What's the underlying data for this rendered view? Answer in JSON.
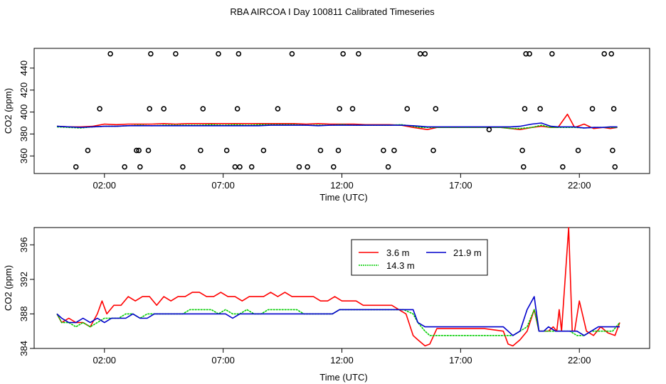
{
  "title": "RBA AIRCOA I  Day 100811  Calibrated Timeseries",
  "chart_data": [
    {
      "type": "scatter+line",
      "name": "full-range",
      "xlabel": "Time (UTC)",
      "ylabel": "CO2 (ppm)",
      "xlim": [
        0,
        24
      ],
      "ylim": [
        344,
        458
      ],
      "x_ticks": [
        2,
        7,
        12,
        17,
        22
      ],
      "x_tick_labels": [
        "02:00",
        "07:00",
        "12:00",
        "17:00",
        "22:00"
      ],
      "y_ticks": [
        360,
        380,
        400,
        420,
        440
      ],
      "y_tick_labels": [
        "360",
        "380",
        "400",
        "420",
        "440"
      ],
      "series": [
        {
          "name": "3.6 m",
          "color": "#ff0000",
          "x": [
            0,
            0.5,
            1,
            1.5,
            2,
            2.5,
            3,
            3.5,
            4,
            4.5,
            5,
            5.5,
            6,
            6.5,
            7,
            7.5,
            8,
            8.5,
            9,
            9.5,
            10,
            10.5,
            11,
            11.5,
            12,
            12.5,
            13,
            13.5,
            14,
            14.5,
            15,
            15.3,
            15.6,
            16,
            17,
            18,
            18.7,
            19.1,
            19.5,
            20,
            20.4,
            20.8,
            21.1,
            21.3,
            21.5,
            21.8,
            22.2,
            22.6,
            23,
            23.3,
            23.6
          ],
          "y": [
            387,
            386.5,
            386.5,
            387,
            389,
            388.5,
            389,
            389,
            389,
            389.5,
            389,
            389.5,
            389.5,
            389.5,
            389.5,
            389.5,
            389.5,
            389.5,
            389.5,
            389.5,
            389.5,
            389,
            389.5,
            389,
            389,
            389,
            388.5,
            388.5,
            388.5,
            388,
            386,
            385,
            384,
            386,
            386,
            386,
            386,
            385,
            384,
            386,
            387,
            386,
            386,
            392,
            398,
            386,
            389,
            385,
            386,
            385,
            386
          ]
        },
        {
          "name": "14.3 m",
          "color": "#00cc00",
          "x": [
            0,
            0.5,
            1,
            1.5,
            2,
            2.5,
            3,
            3.5,
            4,
            4.5,
            5,
            5.5,
            6,
            6.5,
            7,
            7.5,
            8,
            8.5,
            9,
            9.5,
            10,
            10.5,
            11,
            11.5,
            12,
            12.5,
            13,
            13.5,
            14,
            14.5,
            15,
            15.3,
            15.6,
            16,
            17,
            18,
            18.7,
            19.1,
            19.5,
            20,
            20.4,
            20.8,
            21.1,
            21.3,
            21.5,
            21.8,
            22.2,
            22.6,
            23,
            23.3,
            23.6
          ],
          "y": [
            386.5,
            386,
            385.5,
            386.5,
            387,
            387,
            387.5,
            388,
            387.5,
            388,
            388,
            388,
            388,
            388.5,
            388,
            388.5,
            388,
            388.5,
            388.5,
            388.5,
            388.5,
            388,
            388,
            388,
            388.5,
            388,
            388,
            388,
            388,
            388.5,
            387,
            386,
            386,
            386,
            386,
            386,
            386,
            385,
            385,
            386,
            388,
            386,
            386,
            386,
            386,
            386,
            385.5,
            386,
            386,
            386,
            386
          ]
        },
        {
          "name": "21.9 m",
          "color": "#0000cc",
          "x": [
            0,
            0.5,
            1,
            1.5,
            2,
            2.5,
            3,
            3.5,
            4,
            4.5,
            5,
            5.5,
            6,
            6.5,
            7,
            7.5,
            8,
            8.5,
            9,
            9.5,
            10,
            10.5,
            11,
            11.5,
            12,
            12.5,
            13,
            13.5,
            14,
            14.5,
            15,
            15.3,
            15.6,
            16,
            17,
            18,
            18.7,
            19.1,
            19.5,
            20,
            20.4,
            20.8,
            21.1,
            21.3,
            21.5,
            21.8,
            22.2,
            22.6,
            23,
            23.3,
            23.6
          ],
          "y": [
            387,
            386.5,
            386,
            386.5,
            387,
            387,
            387.5,
            387.5,
            387.5,
            387.5,
            387.5,
            387.5,
            387.5,
            387.5,
            387.5,
            387.5,
            387.5,
            387.5,
            388,
            388,
            388,
            388,
            387.5,
            388,
            388,
            388,
            388,
            388,
            388,
            388,
            387.5,
            387,
            386.5,
            386.5,
            386.5,
            386.5,
            386.5,
            386.5,
            387,
            389,
            390,
            387,
            386.5,
            386.5,
            386.5,
            386.5,
            385.5,
            386,
            386,
            386.5,
            386.5
          ]
        },
        {
          "name": "points",
          "kind": "markers",
          "x": [
            0.8,
            1.3,
            1.8,
            2.25,
            2.85,
            3.35,
            3.45,
            3.5,
            3.85,
            3.9,
            3.95,
            4.5,
            5.0,
            5.3,
            6.05,
            6.15,
            6.8,
            7.15,
            7.5,
            7.6,
            7.65,
            7.7,
            8.2,
            8.7,
            9.3,
            9.9,
            10.2,
            10.55,
            11.1,
            11.65,
            11.85,
            11.9,
            12.05,
            12.45,
            12.7,
            13.75,
            13.95,
            14.2,
            14.75,
            15.3,
            15.5,
            15.85,
            15.95,
            18.2,
            19.6,
            19.65,
            19.7,
            19.75,
            19.9,
            20.35,
            20.85,
            21.3,
            21.95,
            22.55,
            23.05,
            23.35,
            23.4,
            23.45,
            23.5
          ],
          "y": [
            350,
            365,
            403,
            453,
            350,
            365,
            365,
            350,
            365,
            403,
            453,
            403,
            453,
            350,
            365,
            403,
            453,
            365,
            350,
            403,
            453,
            350,
            350,
            365,
            403,
            453,
            350,
            350,
            365,
            350,
            365,
            403,
            453,
            403,
            453,
            365,
            350,
            365,
            403,
            453,
            453,
            365,
            403,
            384,
            365,
            350,
            403,
            453,
            453,
            403,
            453,
            350,
            365,
            403,
            453,
            453,
            365,
            403,
            350
          ]
        }
      ]
    },
    {
      "type": "line",
      "name": "zoomed",
      "xlabel": "Time (UTC)",
      "ylabel": "CO2 (ppm)",
      "xlim": [
        0,
        24
      ],
      "ylim": [
        384,
        398
      ],
      "x_ticks": [
        2,
        7,
        12,
        17,
        22
      ],
      "x_tick_labels": [
        "02:00",
        "07:00",
        "12:00",
        "17:00",
        "22:00"
      ],
      "y_ticks": [
        384,
        388,
        392,
        396
      ],
      "y_tick_labels": [
        "384",
        "388",
        "392",
        "396"
      ],
      "legend": {
        "position": "top-center",
        "entries": [
          "3.6 m",
          "21.9 m",
          "14.3 m"
        ]
      },
      "series": [
        {
          "name": "3.6 m",
          "color": "#ff0000",
          "x": [
            0,
            0.2,
            0.5,
            0.8,
            1.1,
            1.4,
            1.7,
            1.9,
            2.1,
            2.4,
            2.7,
            3.0,
            3.3,
            3.6,
            3.9,
            4.2,
            4.5,
            4.8,
            5.1,
            5.4,
            5.7,
            6.0,
            6.3,
            6.6,
            6.9,
            7.2,
            7.5,
            7.8,
            8.1,
            8.4,
            8.7,
            9.0,
            9.3,
            9.6,
            9.9,
            10.2,
            10.5,
            10.8,
            11.1,
            11.4,
            11.7,
            12.0,
            12.3,
            12.6,
            12.9,
            13.2,
            13.5,
            13.8,
            14.1,
            14.4,
            14.7,
            15.0,
            15.2,
            15.5,
            15.7,
            16.0,
            17.0,
            18.0,
            18.8,
            19.0,
            19.2,
            19.5,
            19.8,
            20.1,
            20.3,
            20.5,
            20.7,
            20.9,
            21.05,
            21.15,
            21.25,
            21.4,
            21.55,
            21.7,
            21.8,
            22.0,
            22.3,
            22.6,
            22.9,
            23.2,
            23.5,
            23.7
          ],
          "y": [
            388,
            387,
            387.5,
            387,
            387,
            386.5,
            388,
            389.5,
            388,
            389,
            389,
            390,
            389.5,
            390,
            390,
            389,
            390,
            389.5,
            390,
            390,
            390.5,
            390.5,
            390,
            390,
            390.5,
            390,
            390,
            389.5,
            390,
            390,
            390,
            390.5,
            390,
            390.5,
            390,
            390,
            390,
            390,
            389.5,
            389.5,
            390,
            389.5,
            389.5,
            389.5,
            389,
            389,
            389,
            389,
            389,
            388.5,
            388,
            385.5,
            385,
            384.3,
            384.5,
            386.3,
            386.3,
            386.3,
            386,
            384.5,
            384.3,
            385,
            386,
            388.5,
            386,
            386,
            386,
            386.5,
            386,
            388.5,
            386,
            392,
            398,
            386,
            386,
            389.5,
            386,
            385.5,
            386.5,
            385.8,
            385.5,
            387
          ]
        },
        {
          "name": "14.3 m",
          "color": "#00cc00",
          "x": [
            0,
            0.2,
            0.5,
            0.8,
            1.1,
            1.4,
            1.7,
            2.0,
            2.3,
            2.6,
            2.9,
            3.2,
            3.5,
            3.8,
            4.1,
            4.4,
            4.7,
            5.0,
            5.3,
            5.6,
            5.9,
            6.2,
            6.5,
            6.8,
            7.1,
            7.4,
            7.7,
            8.0,
            8.3,
            8.6,
            8.9,
            9.2,
            9.5,
            9.8,
            10.1,
            10.4,
            10.7,
            11.0,
            11.3,
            11.6,
            11.9,
            12.2,
            12.5,
            12.8,
            13.1,
            13.4,
            13.7,
            14.0,
            14.3,
            14.6,
            15.0,
            15.2,
            15.5,
            15.7,
            16.0,
            17.0,
            18.0,
            18.8,
            19.0,
            19.2,
            19.5,
            19.8,
            20.1,
            20.3,
            20.5,
            20.7,
            21.0,
            21.3,
            21.6,
            21.9,
            22.2,
            22.5,
            22.8,
            23.1,
            23.4,
            23.7
          ],
          "y": [
            388,
            387,
            387,
            386.5,
            387,
            386.5,
            387,
            387.5,
            387.5,
            387.5,
            388,
            388,
            387.5,
            388,
            388,
            388,
            388,
            388,
            388,
            388.5,
            388.5,
            388.5,
            388.5,
            388,
            388.5,
            388,
            388,
            388.5,
            388,
            388,
            388.5,
            388.5,
            388.5,
            388.5,
            388.5,
            388,
            388,
            388,
            388,
            388,
            388.5,
            388.5,
            388.5,
            388.5,
            388.5,
            388.5,
            388.5,
            388.5,
            388.5,
            388.5,
            388,
            387,
            386,
            385.5,
            385.5,
            385.5,
            385.5,
            385.5,
            385.5,
            385.5,
            386,
            386.5,
            388.5,
            386,
            386,
            386,
            386,
            386,
            386,
            385.5,
            385.5,
            386,
            386,
            386,
            386,
            387
          ]
        },
        {
          "name": "21.9 m",
          "color": "#0000cc",
          "x": [
            0,
            0.2,
            0.5,
            0.8,
            1.1,
            1.4,
            1.7,
            2.0,
            2.3,
            2.6,
            2.9,
            3.2,
            3.5,
            3.8,
            4.1,
            4.4,
            4.7,
            5.0,
            5.3,
            5.6,
            5.9,
            6.2,
            6.5,
            6.8,
            7.1,
            7.4,
            7.7,
            8.0,
            8.3,
            8.6,
            8.9,
            9.2,
            9.5,
            9.8,
            10.1,
            10.4,
            10.7,
            11.0,
            11.3,
            11.6,
            11.9,
            12.2,
            12.5,
            12.8,
            13.1,
            13.4,
            13.7,
            14.0,
            14.3,
            14.6,
            15.0,
            15.2,
            15.5,
            15.7,
            16.0,
            17.0,
            18.0,
            18.8,
            19.0,
            19.2,
            19.5,
            19.8,
            20.1,
            20.3,
            20.5,
            20.7,
            21.0,
            21.3,
            21.6,
            21.9,
            22.2,
            22.5,
            22.8,
            23.1,
            23.4,
            23.7
          ],
          "y": [
            388,
            387.5,
            387,
            387,
            387.5,
            387,
            387.5,
            387,
            387.5,
            387.5,
            387.5,
            388,
            387.5,
            387.5,
            388,
            388,
            388,
            388,
            388,
            388,
            388,
            388,
            388,
            388,
            388,
            387.5,
            388,
            388,
            388,
            388,
            388,
            388,
            388,
            388,
            388,
            388,
            388,
            388,
            388,
            388,
            388.5,
            388.5,
            388.5,
            388.5,
            388.5,
            388.5,
            388.5,
            388.5,
            388.5,
            388.5,
            388.5,
            387,
            386.5,
            386.5,
            386.5,
            386.5,
            386.5,
            386.5,
            386,
            385.5,
            386,
            388.5,
            390,
            386,
            386,
            386.5,
            386,
            386,
            386,
            386,
            385.5,
            386,
            386.5,
            386.5,
            386.5,
            386.5
          ]
        }
      ]
    }
  ]
}
